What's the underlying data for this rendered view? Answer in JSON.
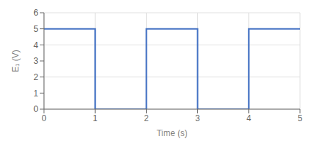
{
  "chart_data": {
    "type": "line",
    "xlabel": "Time (s)",
    "ylabel": "E₁ (V)",
    "x": [
      0,
      1,
      1,
      2,
      2,
      3,
      3,
      4,
      4,
      5
    ],
    "values": [
      5,
      5,
      0,
      0,
      5,
      5,
      0,
      0,
      5,
      5
    ],
    "color": "#4472c4",
    "xlim": [
      0,
      5
    ],
    "ylim": [
      0,
      6
    ],
    "xticks": [
      0,
      1,
      2,
      3,
      4,
      5
    ],
    "yticks": [
      0,
      1,
      2,
      3,
      4,
      5,
      6
    ],
    "grid": true
  }
}
